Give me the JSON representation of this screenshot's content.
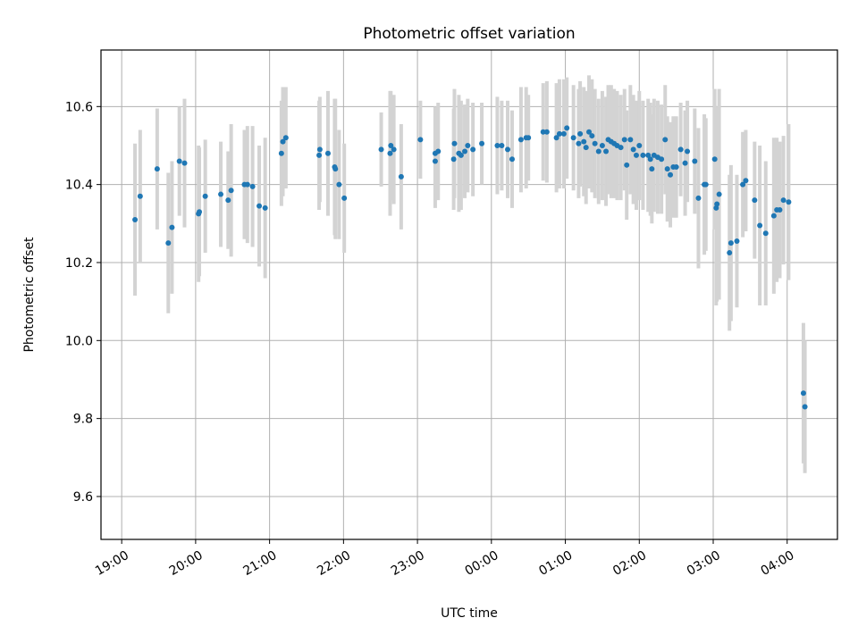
{
  "chart_data": {
    "type": "scatter",
    "title": "Photometric offset variation",
    "xlabel": "UTC time",
    "ylabel": "Photometric offset",
    "x_unit": "UTC hours, continuing past midnight (24 = 00:00)",
    "xlim": [
      18.72,
      28.68
    ],
    "ylim": [
      9.49,
      10.745
    ],
    "grid": true,
    "legend": "none",
    "colors": {
      "points": "#1f77b4",
      "error_bars": "#d3d3d3"
    },
    "xticks": [
      {
        "t": 19,
        "label": "19:00"
      },
      {
        "t": 20,
        "label": "20:00"
      },
      {
        "t": 21,
        "label": "21:00"
      },
      {
        "t": 22,
        "label": "22:00"
      },
      {
        "t": 23,
        "label": "23:00"
      },
      {
        "t": 24,
        "label": "00:00"
      },
      {
        "t": 25,
        "label": "01:00"
      },
      {
        "t": 26,
        "label": "02:00"
      },
      {
        "t": 27,
        "label": "03:00"
      },
      {
        "t": 28,
        "label": "04:00"
      }
    ],
    "yticks": [
      {
        "v": 9.6,
        "label": "9.6"
      },
      {
        "v": 9.8,
        "label": "9.8"
      },
      {
        "v": 10.0,
        "label": "10.0"
      },
      {
        "v": 10.2,
        "label": "10.2"
      },
      {
        "v": 10.4,
        "label": "10.4"
      },
      {
        "v": 10.6,
        "label": "10.6"
      }
    ],
    "points": [
      [
        19.18,
        10.31,
        0.195
      ],
      [
        19.25,
        10.37,
        0.17
      ],
      [
        19.48,
        10.44,
        0.155
      ],
      [
        19.63,
        10.25,
        0.18
      ],
      [
        19.68,
        10.29,
        0.17
      ],
      [
        19.78,
        10.46,
        0.14
      ],
      [
        19.85,
        10.455,
        0.165
      ],
      [
        20.04,
        10.325,
        0.175
      ],
      [
        20.05,
        10.33,
        0.165
      ],
      [
        20.13,
        10.37,
        0.145
      ],
      [
        20.34,
        10.375,
        0.135
      ],
      [
        20.44,
        10.36,
        0.125
      ],
      [
        20.48,
        10.385,
        0.17
      ],
      [
        20.66,
        10.4,
        0.14
      ],
      [
        20.7,
        10.4,
        0.15
      ],
      [
        20.77,
        10.395,
        0.155
      ],
      [
        20.86,
        10.345,
        0.155
      ],
      [
        20.94,
        10.34,
        0.18
      ],
      [
        21.16,
        10.48,
        0.135
      ],
      [
        21.18,
        10.51,
        0.14
      ],
      [
        21.22,
        10.52,
        0.13
      ],
      [
        21.67,
        10.475,
        0.14
      ],
      [
        21.68,
        10.49,
        0.135
      ],
      [
        21.79,
        10.48,
        0.16
      ],
      [
        21.88,
        10.445,
        0.175
      ],
      [
        21.89,
        10.44,
        0.18
      ],
      [
        21.94,
        10.4,
        0.14
      ],
      [
        22.01,
        10.365,
        0.14
      ],
      [
        22.51,
        10.49,
        0.095
      ],
      [
        22.63,
        10.48,
        0.16
      ],
      [
        22.64,
        10.5,
        0.14
      ],
      [
        22.68,
        10.49,
        0.14
      ],
      [
        22.78,
        10.42,
        0.135
      ],
      [
        23.04,
        10.515,
        0.1
      ],
      [
        23.24,
        10.46,
        0.12
      ],
      [
        23.24,
        10.48,
        0.12
      ],
      [
        23.28,
        10.485,
        0.125
      ],
      [
        23.49,
        10.465,
        0.13
      ],
      [
        23.5,
        10.505,
        0.14
      ],
      [
        23.56,
        10.48,
        0.15
      ],
      [
        23.59,
        10.475,
        0.14
      ],
      [
        23.64,
        10.485,
        0.12
      ],
      [
        23.68,
        10.5,
        0.12
      ],
      [
        23.75,
        10.49,
        0.12
      ],
      [
        23.87,
        10.505,
        0.105
      ],
      [
        24.08,
        10.5,
        0.125
      ],
      [
        24.14,
        10.5,
        0.115
      ],
      [
        24.22,
        10.49,
        0.125
      ],
      [
        24.28,
        10.465,
        0.125
      ],
      [
        24.4,
        10.515,
        0.135
      ],
      [
        24.47,
        10.52,
        0.13
      ],
      [
        24.5,
        10.52,
        0.11
      ],
      [
        24.7,
        10.535,
        0.125
      ],
      [
        24.75,
        10.535,
        0.13
      ],
      [
        24.88,
        10.52,
        0.14
      ],
      [
        24.92,
        10.53,
        0.14
      ],
      [
        24.98,
        10.53,
        0.14
      ],
      [
        25.02,
        10.545,
        0.13
      ],
      [
        25.11,
        10.52,
        0.135
      ],
      [
        25.18,
        10.505,
        0.14
      ],
      [
        25.2,
        10.53,
        0.135
      ],
      [
        25.25,
        10.51,
        0.14
      ],
      [
        25.28,
        10.495,
        0.145
      ],
      [
        25.32,
        10.535,
        0.145
      ],
      [
        25.36,
        10.525,
        0.145
      ],
      [
        25.4,
        10.505,
        0.14
      ],
      [
        25.45,
        10.485,
        0.135
      ],
      [
        25.5,
        10.5,
        0.14
      ],
      [
        25.55,
        10.485,
        0.14
      ],
      [
        25.58,
        10.515,
        0.14
      ],
      [
        25.62,
        10.51,
        0.145
      ],
      [
        25.66,
        10.505,
        0.14
      ],
      [
        25.7,
        10.5,
        0.14
      ],
      [
        25.75,
        10.495,
        0.135
      ],
      [
        25.8,
        10.515,
        0.13
      ],
      [
        25.83,
        10.45,
        0.14
      ],
      [
        25.88,
        10.515,
        0.14
      ],
      [
        25.92,
        10.49,
        0.14
      ],
      [
        25.96,
        10.475,
        0.14
      ],
      [
        26.0,
        10.5,
        0.14
      ],
      [
        26.05,
        10.475,
        0.14
      ],
      [
        26.12,
        10.475,
        0.145
      ],
      [
        26.15,
        10.465,
        0.145
      ],
      [
        26.17,
        10.44,
        0.14
      ],
      [
        26.2,
        10.475,
        0.145
      ],
      [
        26.25,
        10.47,
        0.145
      ],
      [
        26.3,
        10.465,
        0.14
      ],
      [
        26.35,
        10.515,
        0.14
      ],
      [
        26.38,
        10.44,
        0.135
      ],
      [
        26.42,
        10.425,
        0.135
      ],
      [
        26.46,
        10.445,
        0.13
      ],
      [
        26.5,
        10.445,
        0.13
      ],
      [
        26.56,
        10.49,
        0.12
      ],
      [
        26.62,
        10.455,
        0.135
      ],
      [
        26.65,
        10.485,
        0.13
      ],
      [
        26.75,
        10.46,
        0.135
      ],
      [
        26.8,
        10.365,
        0.18
      ],
      [
        26.88,
        10.4,
        0.18
      ],
      [
        26.9,
        10.4,
        0.17
      ],
      [
        27.02,
        10.465,
        0.18
      ],
      [
        27.04,
        10.34,
        0.25
      ],
      [
        27.05,
        10.35,
        0.25
      ],
      [
        27.08,
        10.375,
        0.27
      ],
      [
        27.22,
        10.225,
        0.2
      ],
      [
        27.24,
        10.25,
        0.2
      ],
      [
        27.32,
        10.255,
        0.17
      ],
      [
        27.4,
        10.4,
        0.135
      ],
      [
        27.44,
        10.41,
        0.13
      ],
      [
        27.56,
        10.36,
        0.15
      ],
      [
        27.63,
        10.295,
        0.205
      ],
      [
        27.71,
        10.275,
        0.185
      ],
      [
        27.82,
        10.32,
        0.2
      ],
      [
        27.86,
        10.335,
        0.185
      ],
      [
        27.9,
        10.335,
        0.175
      ],
      [
        27.95,
        10.36,
        0.165
      ],
      [
        28.02,
        10.355,
        0.2
      ],
      [
        28.22,
        9.865,
        0.18
      ],
      [
        28.24,
        9.83,
        0.17
      ]
    ]
  }
}
